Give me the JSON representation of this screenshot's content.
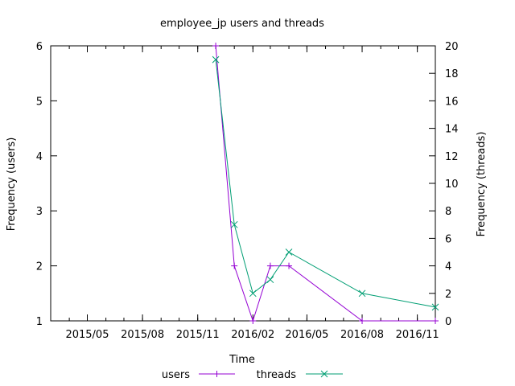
{
  "chart_data": {
    "type": "line",
    "title": "employee_jp users and threads",
    "xlabel": "Time",
    "ylabel": "Frequency (users)",
    "y2label": "Frequency (threads)",
    "x_ticks": [
      "2015/05",
      "2015/08",
      "2015/11",
      "2016/02",
      "2016/05",
      "2016/08",
      "2016/11"
    ],
    "x_tick_dates": [
      "2015-05-01",
      "2015-08-01",
      "2015-11-01",
      "2016-02-01",
      "2016-05-01",
      "2016-08-01",
      "2016-11-01"
    ],
    "xlim": [
      "2015-03-01",
      "2016-12-01"
    ],
    "ylim": [
      1,
      6
    ],
    "y2lim": [
      0,
      20
    ],
    "y_ticks": [
      1,
      2,
      3,
      4,
      5,
      6
    ],
    "y2_ticks": [
      0,
      2,
      4,
      6,
      8,
      10,
      12,
      14,
      16,
      18,
      20
    ],
    "grid": false,
    "legend_position": "bottom-center",
    "series": [
      {
        "name": "users",
        "axis": "left",
        "color": "#9400d3",
        "marker": "plus",
        "points": [
          {
            "x": "2015-12-01",
            "y": 6
          },
          {
            "x": "2016-01-01",
            "y": 2
          },
          {
            "x": "2016-02-01",
            "y": 1
          },
          {
            "x": "2016-03-01",
            "y": 2
          },
          {
            "x": "2016-04-01",
            "y": 2
          },
          {
            "x": "2016-08-01",
            "y": 1
          },
          {
            "x": "2016-12-01",
            "y": 1
          }
        ]
      },
      {
        "name": "threads",
        "axis": "right",
        "color": "#009e73",
        "marker": "cross",
        "points": [
          {
            "x": "2015-12-01",
            "y": 19
          },
          {
            "x": "2016-01-01",
            "y": 7
          },
          {
            "x": "2016-02-01",
            "y": 2
          },
          {
            "x": "2016-03-01",
            "y": 3
          },
          {
            "x": "2016-04-01",
            "y": 5
          },
          {
            "x": "2016-08-01",
            "y": 2
          },
          {
            "x": "2016-12-01",
            "y": 1
          }
        ]
      }
    ]
  }
}
